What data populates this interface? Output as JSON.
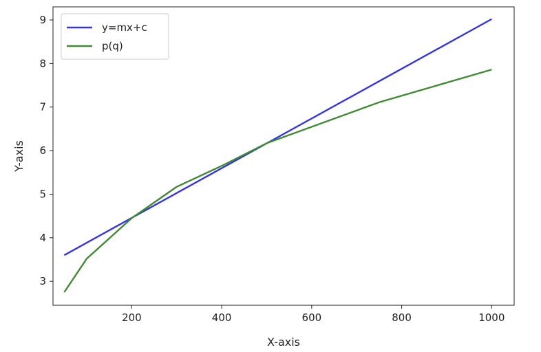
{
  "chart_data": {
    "type": "line",
    "title": "",
    "xlabel": "X-axis",
    "ylabel": "Y-axis",
    "xlim": [
      25,
      1050
    ],
    "ylim": [
      2.45,
      9.3
    ],
    "xticks": [
      200,
      400,
      600,
      800,
      1000
    ],
    "yticks": [
      3,
      4,
      5,
      6,
      7,
      8,
      9
    ],
    "grid": false,
    "legend_position": "top-left",
    "series": [
      {
        "name": "y=mx+c",
        "color": "#3333ee",
        "x": [
          50,
          1000
        ],
        "y": [
          3.6,
          9.02
        ]
      },
      {
        "name": "p(q)",
        "color": "#3f8a33",
        "x": [
          50,
          100,
          200,
          300,
          400,
          500,
          750,
          1000
        ],
        "y": [
          2.75,
          3.52,
          4.45,
          5.17,
          5.65,
          6.17,
          7.11,
          7.86
        ]
      }
    ]
  }
}
